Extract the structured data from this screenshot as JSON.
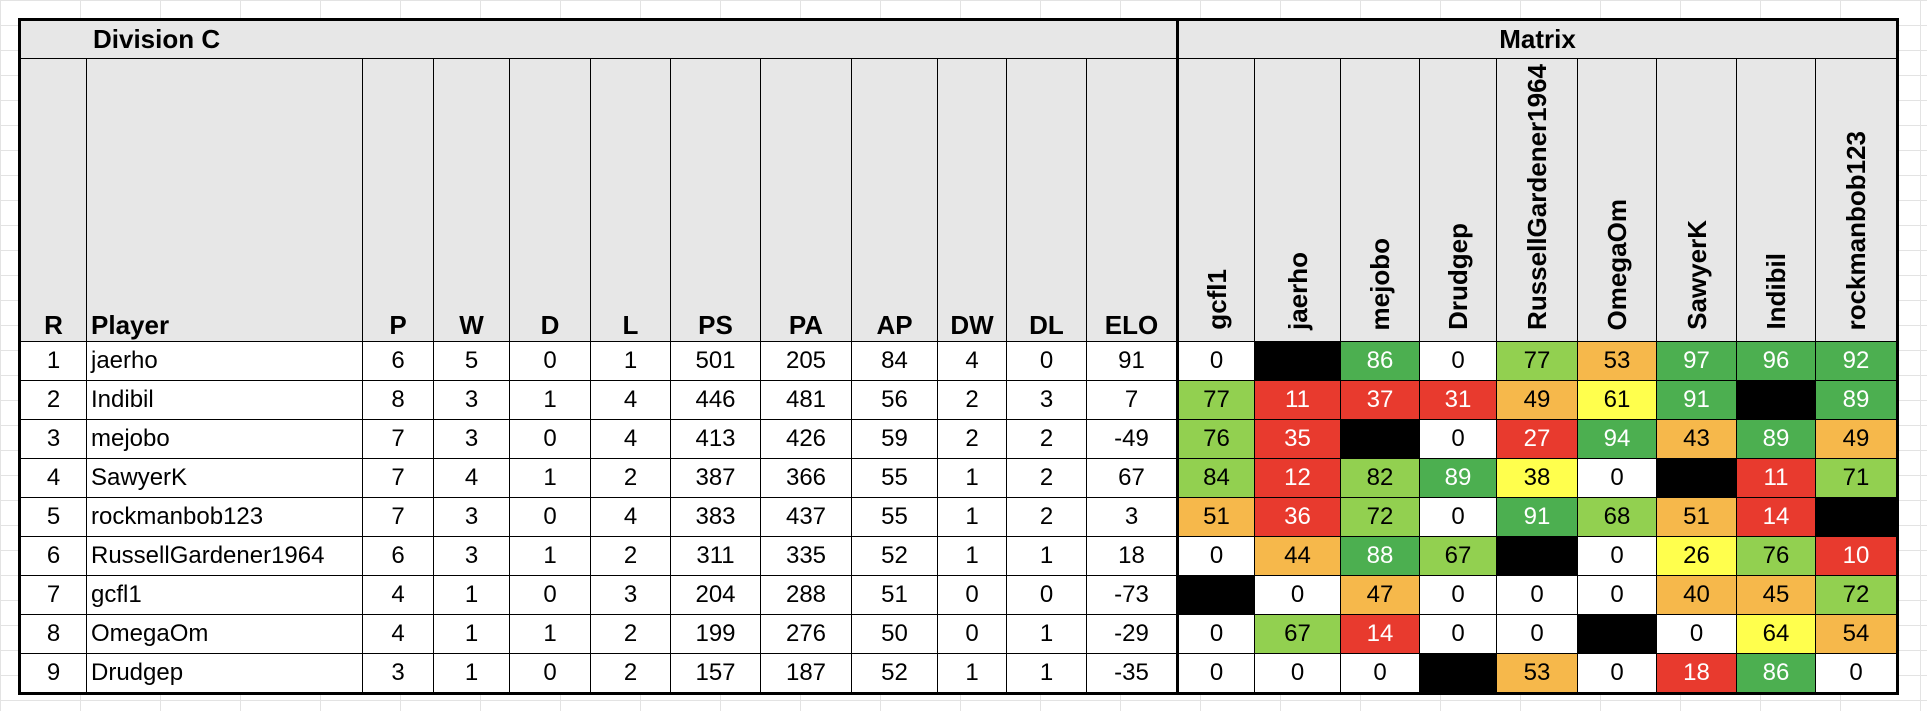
{
  "division_title": "Division C",
  "matrix_title": "Matrix",
  "columns": [
    "R",
    "Player",
    "P",
    "W",
    "D",
    "L",
    "PS",
    "PA",
    "AP",
    "DW",
    "DL",
    "ELO"
  ],
  "matrix_columns": [
    "gcfl1",
    "jaerho",
    "mejobo",
    "Drudgep",
    "RussellGardener1964",
    "OmegaOm",
    "SawyerK",
    "Indibil",
    "rockmanbob123"
  ],
  "colors": {
    "header_gray": "#e7e7e7",
    "dark_green": "#4caf50",
    "light_green": "#92d050",
    "orange": "#f6b84b",
    "yellow": "#ffff4d",
    "red": "#e83a2e",
    "black": "#000000",
    "white": "#ffffff"
  },
  "rows": [
    {
      "r": "1",
      "player": "jaerho",
      "p": "6",
      "w": "5",
      "d": "0",
      "l": "1",
      "ps": "501",
      "pa": "205",
      "ap": "84",
      "dw": "4",
      "dl": "0",
      "elo": "91",
      "matrix": [
        {
          "v": "0",
          "c": "white"
        },
        {
          "v": "",
          "c": "black"
        },
        {
          "v": "86",
          "c": "dark_green"
        },
        {
          "v": "0",
          "c": "white"
        },
        {
          "v": "77",
          "c": "light_green"
        },
        {
          "v": "53",
          "c": "orange"
        },
        {
          "v": "97",
          "c": "dark_green"
        },
        {
          "v": "96",
          "c": "dark_green"
        },
        {
          "v": "92",
          "c": "dark_green"
        }
      ]
    },
    {
      "r": "2",
      "player": "Indibil",
      "p": "8",
      "w": "3",
      "d": "1",
      "l": "4",
      "ps": "446",
      "pa": "481",
      "ap": "56",
      "dw": "2",
      "dl": "3",
      "elo": "7",
      "matrix": [
        {
          "v": "77",
          "c": "light_green"
        },
        {
          "v": "11",
          "c": "red"
        },
        {
          "v": "37",
          "c": "red"
        },
        {
          "v": "31",
          "c": "red"
        },
        {
          "v": "49",
          "c": "orange"
        },
        {
          "v": "61",
          "c": "yellow"
        },
        {
          "v": "91",
          "c": "dark_green"
        },
        {
          "v": "",
          "c": "black"
        },
        {
          "v": "89",
          "c": "dark_green"
        }
      ]
    },
    {
      "r": "3",
      "player": "mejobo",
      "p": "7",
      "w": "3",
      "d": "0",
      "l": "4",
      "ps": "413",
      "pa": "426",
      "ap": "59",
      "dw": "2",
      "dl": "2",
      "elo": "-49",
      "matrix": [
        {
          "v": "76",
          "c": "light_green"
        },
        {
          "v": "35",
          "c": "red"
        },
        {
          "v": "",
          "c": "black"
        },
        {
          "v": "0",
          "c": "white"
        },
        {
          "v": "27",
          "c": "red"
        },
        {
          "v": "94",
          "c": "dark_green"
        },
        {
          "v": "43",
          "c": "orange"
        },
        {
          "v": "89",
          "c": "dark_green"
        },
        {
          "v": "49",
          "c": "orange"
        }
      ]
    },
    {
      "r": "4",
      "player": "SawyerK",
      "p": "7",
      "w": "4",
      "d": "1",
      "l": "2",
      "ps": "387",
      "pa": "366",
      "ap": "55",
      "dw": "1",
      "dl": "2",
      "elo": "67",
      "matrix": [
        {
          "v": "84",
          "c": "light_green"
        },
        {
          "v": "12",
          "c": "red"
        },
        {
          "v": "82",
          "c": "light_green"
        },
        {
          "v": "89",
          "c": "dark_green"
        },
        {
          "v": "38",
          "c": "yellow"
        },
        {
          "v": "0",
          "c": "white"
        },
        {
          "v": "",
          "c": "black"
        },
        {
          "v": "11",
          "c": "red"
        },
        {
          "v": "71",
          "c": "light_green"
        }
      ]
    },
    {
      "r": "5",
      "player": "rockmanbob123",
      "p": "7",
      "w": "3",
      "d": "0",
      "l": "4",
      "ps": "383",
      "pa": "437",
      "ap": "55",
      "dw": "1",
      "dl": "2",
      "elo": "3",
      "matrix": [
        {
          "v": "51",
          "c": "orange"
        },
        {
          "v": "36",
          "c": "red"
        },
        {
          "v": "72",
          "c": "light_green"
        },
        {
          "v": "0",
          "c": "white"
        },
        {
          "v": "91",
          "c": "dark_green"
        },
        {
          "v": "68",
          "c": "light_green"
        },
        {
          "v": "51",
          "c": "orange"
        },
        {
          "v": "14",
          "c": "red"
        },
        {
          "v": "",
          "c": "black"
        }
      ]
    },
    {
      "r": "6",
      "player": "RussellGardener1964",
      "p": "6",
      "w": "3",
      "d": "1",
      "l": "2",
      "ps": "311",
      "pa": "335",
      "ap": "52",
      "dw": "1",
      "dl": "1",
      "elo": "18",
      "matrix": [
        {
          "v": "0",
          "c": "white"
        },
        {
          "v": "44",
          "c": "orange"
        },
        {
          "v": "88",
          "c": "dark_green"
        },
        {
          "v": "67",
          "c": "light_green"
        },
        {
          "v": "",
          "c": "black"
        },
        {
          "v": "0",
          "c": "white"
        },
        {
          "v": "26",
          "c": "yellow"
        },
        {
          "v": "76",
          "c": "light_green"
        },
        {
          "v": "10",
          "c": "red"
        }
      ]
    },
    {
      "r": "7",
      "player": "gcfl1",
      "p": "4",
      "w": "1",
      "d": "0",
      "l": "3",
      "ps": "204",
      "pa": "288",
      "ap": "51",
      "dw": "0",
      "dl": "0",
      "elo": "-73",
      "matrix": [
        {
          "v": "",
          "c": "black"
        },
        {
          "v": "0",
          "c": "white"
        },
        {
          "v": "47",
          "c": "orange"
        },
        {
          "v": "0",
          "c": "white"
        },
        {
          "v": "0",
          "c": "white"
        },
        {
          "v": "0",
          "c": "white"
        },
        {
          "v": "40",
          "c": "orange"
        },
        {
          "v": "45",
          "c": "orange"
        },
        {
          "v": "72",
          "c": "light_green"
        }
      ]
    },
    {
      "r": "8",
      "player": "OmegaOm",
      "p": "4",
      "w": "1",
      "d": "1",
      "l": "2",
      "ps": "199",
      "pa": "276",
      "ap": "50",
      "dw": "0",
      "dl": "1",
      "elo": "-29",
      "matrix": [
        {
          "v": "0",
          "c": "white"
        },
        {
          "v": "67",
          "c": "light_green"
        },
        {
          "v": "14",
          "c": "red"
        },
        {
          "v": "0",
          "c": "white"
        },
        {
          "v": "0",
          "c": "white"
        },
        {
          "v": "",
          "c": "black"
        },
        {
          "v": "0",
          "c": "white"
        },
        {
          "v": "64",
          "c": "yellow"
        },
        {
          "v": "54",
          "c": "orange"
        }
      ]
    },
    {
      "r": "9",
      "player": "Drudgep",
      "p": "3",
      "w": "1",
      "d": "0",
      "l": "2",
      "ps": "157",
      "pa": "187",
      "ap": "52",
      "dw": "1",
      "dl": "1",
      "elo": "-35",
      "matrix": [
        {
          "v": "0",
          "c": "white"
        },
        {
          "v": "0",
          "c": "white"
        },
        {
          "v": "0",
          "c": "white"
        },
        {
          "v": "",
          "c": "black"
        },
        {
          "v": "53",
          "c": "orange"
        },
        {
          "v": "0",
          "c": "white"
        },
        {
          "v": "18",
          "c": "red"
        },
        {
          "v": "86",
          "c": "dark_green"
        },
        {
          "v": "0",
          "c": "white"
        }
      ]
    }
  ]
}
